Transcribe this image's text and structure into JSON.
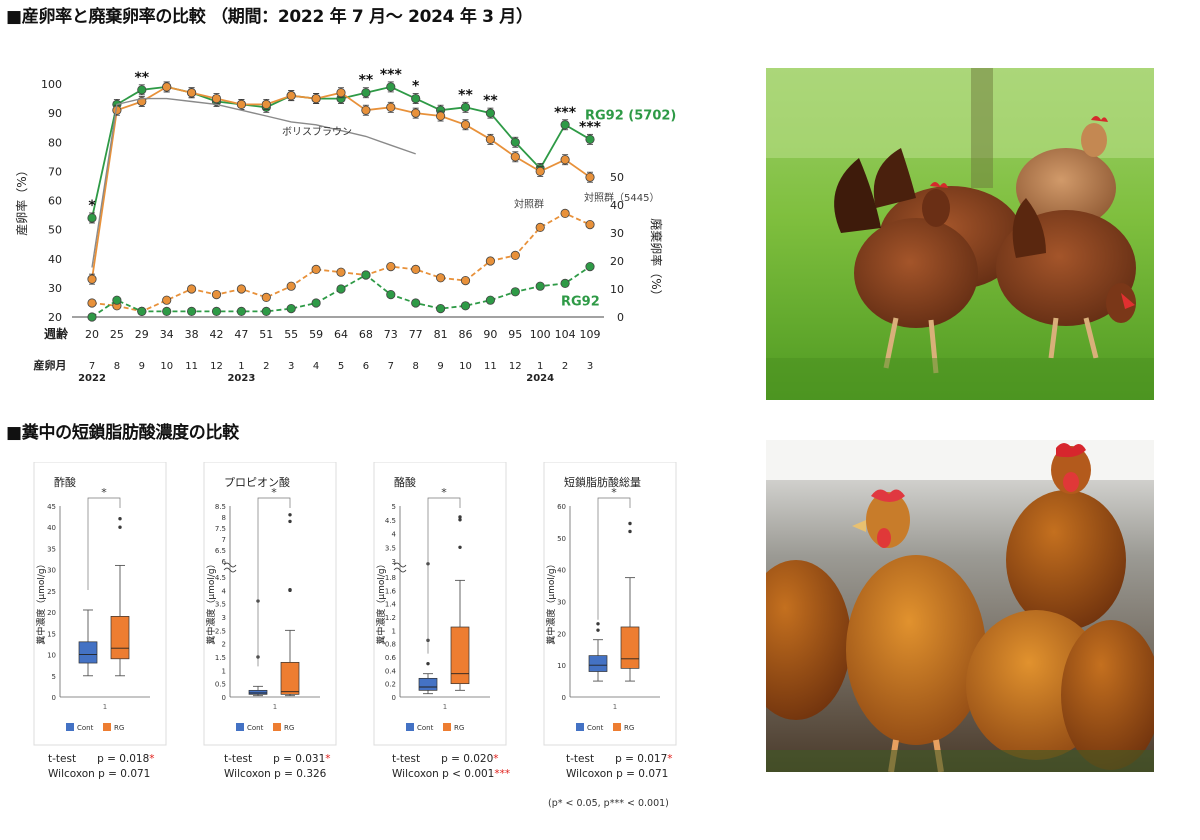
{
  "section1_title": "■産卵率と廃棄卵率の比較 （期間：2022 年 7 月～ 2024 年 3 月）",
  "section2_title": "■糞中の短鎖脂肪酸濃度の比較",
  "colors": {
    "rg": "#2e9a46",
    "control": "#e8913a",
    "reference": "#8a8a8a",
    "cont_box": "#4472c4",
    "rg_box": "#ed7d31",
    "sig": "#e0201b"
  },
  "chart_data": [
    {
      "type": "line",
      "ylabel": "産卵率（%）",
      "ylabel_right": "廃棄卵率（%）",
      "xlabel": "週齢",
      "xlabel2": "産卵月",
      "ylim": [
        20,
        100
      ],
      "ylim_right": [
        0,
        50
      ],
      "yticks": [
        20,
        30,
        40,
        50,
        60,
        70,
        80,
        90,
        100
      ],
      "yticks_right": [
        0,
        10,
        20,
        30,
        40,
        50
      ],
      "x": [
        20,
        25,
        29,
        34,
        38,
        42,
        47,
        51,
        55,
        59,
        64,
        68,
        73,
        77,
        81,
        86,
        90,
        95,
        100,
        104,
        109
      ],
      "months": [
        "7",
        "8",
        "9",
        "10",
        "11",
        "12",
        "1",
        "2",
        "3",
        "4",
        "5",
        "6",
        "7",
        "8",
        "9",
        "10",
        "11",
        "12",
        "1",
        "2",
        "3"
      ],
      "years": [
        {
          "index": 0,
          "label": "2022"
        },
        {
          "index": 6,
          "label": "2023"
        },
        {
          "index": 18,
          "label": "2024"
        }
      ],
      "series": [
        {
          "name": "RG92 (5702)",
          "axis": "left",
          "style": "solid",
          "color": "#2e9a46",
          "values": [
            54,
            93,
            98,
            99,
            97,
            94,
            93,
            92,
            96,
            95,
            95,
            97,
            99,
            95,
            91,
            92,
            90,
            80,
            71,
            86,
            81
          ]
        },
        {
          "name": "対照群（5445）",
          "axis": "left",
          "style": "solid",
          "color": "#e8913a",
          "values": [
            33,
            91,
            94,
            99,
            97,
            95,
            93,
            93,
            96,
            95,
            97,
            91,
            92,
            90,
            89,
            86,
            81,
            75,
            70,
            74,
            68
          ]
        },
        {
          "name": "ボリスブラウン",
          "axis": "left",
          "style": "reference",
          "color": "#8a8a8a",
          "values": [
            37,
            93,
            95,
            95,
            94,
            93,
            91,
            89,
            87,
            86,
            84,
            82,
            79,
            76,
            null,
            null,
            null,
            null,
            null,
            null,
            null
          ]
        },
        {
          "name": "対照群",
          "axis": "right",
          "style": "dashed",
          "color": "#e8913a",
          "values": [
            5,
            4,
            2,
            6,
            10,
            8,
            10,
            7,
            11,
            17,
            16,
            15,
            18,
            17,
            14,
            13,
            20,
            22,
            32,
            37,
            33
          ]
        },
        {
          "name": "RG92",
          "axis": "right",
          "style": "dashed",
          "color": "#2e9a46",
          "values": [
            0,
            6,
            2,
            2,
            2,
            2,
            2,
            2,
            3,
            5,
            10,
            15,
            8,
            5,
            3,
            4,
            6,
            9,
            11,
            12,
            18
          ]
        }
      ],
      "significance": [
        {
          "index": 0,
          "label": "*"
        },
        {
          "index": 2,
          "label": "**"
        },
        {
          "index": 11,
          "label": "**"
        },
        {
          "index": 12,
          "label": "***"
        },
        {
          "index": 13,
          "label": "*"
        },
        {
          "index": 15,
          "label": "**"
        },
        {
          "index": 16,
          "label": "**"
        },
        {
          "index": 19,
          "label": "***"
        },
        {
          "index": 20,
          "label": "***"
        }
      ]
    },
    {
      "type": "box",
      "title": "酢酸",
      "ylabel": "糞中濃度（μmol/g）",
      "xlabel": "1",
      "ylim": [
        0,
        45
      ],
      "yticks": [
        0,
        5,
        10,
        15,
        20,
        25,
        30,
        35,
        40,
        45
      ],
      "cont": {
        "min": 5,
        "q1": 8,
        "median": 10,
        "q3": 13,
        "max": 20.5,
        "outliers": []
      },
      "rg": {
        "min": 5,
        "q1": 9,
        "median": 11.5,
        "q3": 19,
        "max": 31,
        "outliers": [
          40,
          42
        ]
      },
      "sig": "*",
      "ttest": "t-test　　p = 0.018",
      "ttest_star": "*",
      "wilcoxon": "Wilcoxon  p = 0.071",
      "wilcoxon_star": ""
    },
    {
      "type": "box",
      "title": "プロピオン酸",
      "ylabel": "糞中濃度（μmol/g）",
      "xlabel": "1",
      "ylim": [
        0,
        8.5
      ],
      "broken": true,
      "yticks": [
        0,
        0.5,
        1,
        1.5,
        2,
        2.5,
        3,
        3.5,
        4,
        4.5,
        6,
        6.5,
        7,
        7.5,
        8,
        8.5
      ],
      "cont": {
        "min": 0.05,
        "q1": 0.1,
        "median": 0.15,
        "q3": 0.25,
        "max": 0.4,
        "outliers": [
          1.5,
          3.6
        ]
      },
      "rg": {
        "min": 0.05,
        "q1": 0.1,
        "median": 0.2,
        "q3": 1.3,
        "max": 2.5,
        "outliers": [
          4,
          4.7,
          7.8,
          8.1
        ]
      },
      "sig": "*",
      "ttest": "t-test　　p = 0.031",
      "ttest_star": "*",
      "wilcoxon": "Wilcoxon  p = 0.326",
      "wilcoxon_star": ""
    },
    {
      "type": "box",
      "title": "酪酸",
      "ylabel": "糞中濃度（μmol/g）",
      "xlabel": "1",
      "ylim": [
        0,
        5
      ],
      "broken": true,
      "yticks": [
        0,
        0.2,
        0.4,
        0.6,
        0.8,
        1,
        1.2,
        1.4,
        1.6,
        1.8,
        3,
        3.5,
        4,
        4.5,
        5
      ],
      "cont": {
        "min": 0.05,
        "q1": 0.1,
        "median": 0.15,
        "q3": 0.28,
        "max": 0.35,
        "outliers": [
          0.5,
          0.85,
          2.9
        ]
      },
      "rg": {
        "min": 0.1,
        "q1": 0.2,
        "median": 0.35,
        "q3": 1.05,
        "max": 1.75,
        "outliers": [
          3.5,
          4.5,
          4.6
        ]
      },
      "sig": "*",
      "ttest": "t-test　　p = 0.020",
      "ttest_star": "*",
      "wilcoxon": "Wilcoxon  p < 0.001",
      "wilcoxon_star": "***"
    },
    {
      "type": "box",
      "title": "短鎖脂肪酸総量",
      "ylabel": "糞中濃度（μmol/g）",
      "xlabel": "1",
      "ylim": [
        0,
        60
      ],
      "yticks": [
        0,
        10,
        20,
        30,
        40,
        50,
        60
      ],
      "cont": {
        "min": 5,
        "q1": 8,
        "median": 10,
        "q3": 13,
        "max": 18,
        "outliers": [
          21,
          23
        ]
      },
      "rg": {
        "min": 5,
        "q1": 9,
        "median": 12,
        "q3": 22,
        "max": 37.5,
        "outliers": [
          52,
          54.5
        ]
      },
      "sig": "*",
      "ttest": "t-test　　p = 0.017",
      "ttest_star": "*",
      "wilcoxon": "Wilcoxon  p = 0.071",
      "wilcoxon_star": ""
    }
  ],
  "legend": {
    "cont": "Cont",
    "rg": "RG"
  },
  "footnote": "(p* < 0.05, p*** < 0.001)"
}
